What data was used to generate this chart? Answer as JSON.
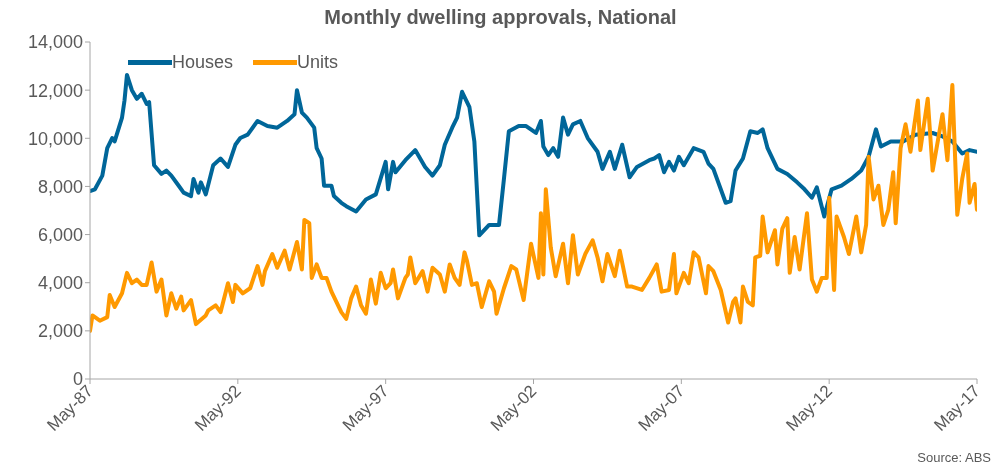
{
  "chart_data": {
    "type": "line",
    "title": "Monthly dwelling approvals, National",
    "annotations": [
      "Source: ABS"
    ],
    "xlim": [
      "1987-05",
      "2017-05"
    ],
    "xticks": [
      {
        "value": "1987-05",
        "label": "May-87"
      },
      {
        "value": "1992-05",
        "label": "May-92"
      },
      {
        "value": "1997-05",
        "label": "May-97"
      },
      {
        "value": "2002-05",
        "label": "May-02"
      },
      {
        "value": "2007-05",
        "label": "May-07"
      },
      {
        "value": "2012-05",
        "label": "May-12"
      },
      {
        "value": "2017-05",
        "label": "May-17"
      }
    ],
    "ylim": [
      0,
      14000
    ],
    "yticks": [
      0,
      {
        "value": 2000,
        "label": "2,000"
      },
      {
        "value": 4000,
        "label": "4,000"
      },
      {
        "value": 6000,
        "label": "6,000"
      },
      {
        "value": 8000,
        "label": "8,000"
      },
      {
        "value": 10000,
        "label": "10,000"
      },
      {
        "value": 12000,
        "label": "12,000"
      },
      {
        "value": 14000,
        "label": "14,000"
      }
    ],
    "legend": "top left",
    "marker": "none",
    "line_style": "solid",
    "series": [
      {
        "name": "Houses",
        "color": "#006699",
        "x": [
          "1987-05",
          "1987-07",
          "1987-10",
          "1987-12",
          "1988-02",
          "1988-03",
          "1988-06",
          "1988-07",
          "1988-08",
          "1988-10",
          "1988-12",
          "1989-02",
          "1989-04",
          "1989-05",
          "1989-07",
          "1989-10",
          "1989-12",
          "1990-02",
          "1990-05",
          "1990-07",
          "1990-10",
          "1990-11",
          "1991-01",
          "1991-02",
          "1991-04",
          "1991-07",
          "1991-10",
          "1992-01",
          "1992-04",
          "1992-06",
          "1992-09",
          "1993-01",
          "1993-05",
          "1993-09",
          "1994-01",
          "1994-04",
          "1994-05",
          "1994-07",
          "1994-09",
          "1994-12",
          "1995-01",
          "1995-03",
          "1995-04",
          "1995-07",
          "1995-08",
          "1995-11",
          "1996-01",
          "1996-05",
          "1996-09",
          "1997-01",
          "1997-05",
          "1997-06",
          "1997-08",
          "1997-09",
          "1998-01",
          "1998-05",
          "1998-09",
          "1998-12",
          "1999-03",
          "1999-05",
          "1999-08",
          "1999-10",
          "1999-12",
          "2000-03",
          "2000-05",
          "2000-07",
          "2000-11",
          "2001-03",
          "2001-05",
          "2001-07",
          "2001-11",
          "2002-02",
          "2002-06",
          "2002-08",
          "2002-09",
          "2002-11",
          "2003-01",
          "2003-03",
          "2003-05",
          "2003-07",
          "2003-09",
          "2003-12",
          "2004-03",
          "2004-07",
          "2004-09",
          "2004-12",
          "2005-02",
          "2005-05",
          "2005-08",
          "2005-11",
          "2006-04",
          "2006-06",
          "2006-08",
          "2006-10",
          "2006-12",
          "2007-02",
          "2007-04",
          "2007-06",
          "2007-10",
          "2008-02",
          "2008-04",
          "2008-06",
          "2008-11",
          "2009-01",
          "2009-03",
          "2009-06",
          "2009-09",
          "2009-12",
          "2010-02",
          "2010-04",
          "2010-08",
          "2010-12",
          "2011-04",
          "2011-07",
          "2011-10",
          "2011-12",
          "2012-03",
          "2012-06",
          "2012-10",
          "2013-02",
          "2013-06",
          "2013-09",
          "2013-12",
          "2014-02",
          "2014-06",
          "2014-11",
          "2015-04",
          "2015-11",
          "2016-03",
          "2016-07",
          "2016-11",
          "2017-02",
          "2017-05"
        ],
        "values": [
          7810,
          7880,
          8450,
          9590,
          10010,
          9870,
          10860,
          11570,
          12630,
          12000,
          11640,
          11850,
          11430,
          11500,
          8880,
          8520,
          8660,
          8450,
          8030,
          7740,
          7600,
          8310,
          7740,
          8170,
          7670,
          8880,
          9160,
          8810,
          9730,
          10010,
          10150,
          10720,
          10510,
          10440,
          10720,
          11000,
          12000,
          11070,
          10860,
          10440,
          9590,
          9160,
          8030,
          8030,
          7600,
          7320,
          7180,
          6960,
          7460,
          7670,
          9020,
          7880,
          9020,
          8590,
          9090,
          9510,
          8810,
          8450,
          8880,
          9730,
          10440,
          10860,
          11930,
          11290,
          9870,
          5970,
          6400,
          6400,
          8310,
          10290,
          10510,
          10510,
          10220,
          10720,
          9660,
          9300,
          9590,
          9230,
          10860,
          10150,
          10580,
          10720,
          10010,
          9440,
          8730,
          9440,
          8730,
          9730,
          8380,
          8810,
          9090,
          9160,
          9300,
          8590,
          9020,
          8660,
          9230,
          8880,
          9590,
          9440,
          8950,
          8730,
          7320,
          7390,
          8660,
          9160,
          10290,
          10220,
          10370,
          9590,
          8730,
          8520,
          8170,
          7880,
          7530,
          7960,
          6750,
          7880,
          8030,
          8310,
          8660,
          9230,
          10370,
          9660,
          9870,
          9870,
          10150,
          10220,
          10080,
          9870,
          9370,
          9510,
          9440
        ]
      },
      {
        "name": "Units",
        "color": "#ff9900",
        "x": [
          "1987-05",
          "1987-06",
          "1987-09",
          "1987-12",
          "1988-01",
          "1988-03",
          "1988-06",
          "1988-08",
          "1988-10",
          "1988-12",
          "1989-02",
          "1989-04",
          "1989-06",
          "1989-08",
          "1989-10",
          "1989-12",
          "1990-02",
          "1990-04",
          "1990-06",
          "1990-07",
          "1990-10",
          "1990-12",
          "1991-04",
          "1991-05",
          "1991-08",
          "1991-10",
          "1992-01",
          "1992-03",
          "1992-04",
          "1992-07",
          "1992-10",
          "1993-01",
          "1993-03",
          "1993-04",
          "1993-07",
          "1993-09",
          "1993-12",
          "1994-02",
          "1994-05",
          "1994-07",
          "1994-08",
          "1994-10",
          "1994-11",
          "1995-01",
          "1995-03",
          "1995-05",
          "1995-07",
          "1995-09",
          "1995-11",
          "1996-01",
          "1996-03",
          "1996-05",
          "1996-07",
          "1996-09",
          "1996-11",
          "1997-01",
          "1997-03",
          "1997-05",
          "1997-07",
          "1997-08",
          "1997-10",
          "1998-01",
          "1998-02",
          "1998-03",
          "1998-05",
          "1998-08",
          "1998-10",
          "1998-12",
          "1999-03",
          "1999-05",
          "1999-07",
          "1999-09",
          "1999-11",
          "2000-01",
          "2000-02",
          "2000-04",
          "2000-06",
          "2000-08",
          "2000-11",
          "2001-01",
          "2001-02",
          "2001-05",
          "2001-08",
          "2001-10",
          "2002-01",
          "2002-04",
          "2002-07",
          "2002-08",
          "2002-09",
          "2002-10",
          "2002-12",
          "2003-02",
          "2003-05",
          "2003-07",
          "2003-09",
          "2003-11",
          "2004-02",
          "2004-05",
          "2004-07",
          "2004-09",
          "2004-11",
          "2005-02",
          "2005-04",
          "2005-07",
          "2005-09",
          "2006-01",
          "2006-04",
          "2006-07",
          "2006-09",
          "2006-12",
          "2007-02",
          "2007-03",
          "2007-06",
          "2007-08",
          "2007-10",
          "2007-12",
          "2008-03",
          "2008-04",
          "2008-06",
          "2008-09",
          "2008-12",
          "2009-02",
          "2009-03",
          "2009-05",
          "2009-06",
          "2009-08",
          "2009-10",
          "2009-11",
          "2010-01",
          "2010-02",
          "2010-04",
          "2010-07",
          "2010-08",
          "2010-10",
          "2010-12",
          "2011-01",
          "2011-03",
          "2011-05",
          "2011-08",
          "2011-10",
          "2011-12",
          "2012-02",
          "2012-04",
          "2012-05",
          "2012-07",
          "2012-08",
          "2012-11",
          "2013-01",
          "2013-04",
          "2013-06",
          "2013-08",
          "2013-09",
          "2013-11",
          "2014-01",
          "2014-03",
          "2014-05",
          "2014-07",
          "2014-08",
          "2014-10",
          "2014-12",
          "2015-02",
          "2015-05",
          "2015-06",
          "2015-09",
          "2015-11",
          "2016-03",
          "2016-05",
          "2016-07",
          "2016-09",
          "2016-11",
          "2017-01",
          "2017-02",
          "2017-04",
          "2017-05"
        ],
        "values": [
          2000,
          2640,
          2420,
          2570,
          3490,
          2990,
          3560,
          4410,
          3980,
          4130,
          3910,
          3910,
          4840,
          3630,
          4130,
          2640,
          3560,
          2920,
          3420,
          2850,
          3280,
          2280,
          2640,
          2850,
          3060,
          2780,
          3980,
          3200,
          3910,
          3560,
          3770,
          4690,
          3910,
          4480,
          5190,
          4620,
          5330,
          4550,
          5690,
          4550,
          6610,
          6470,
          4200,
          4760,
          4200,
          4200,
          3630,
          3200,
          2780,
          2500,
          3350,
          3840,
          3060,
          2710,
          4130,
          3130,
          4410,
          3770,
          3980,
          4550,
          3350,
          4200,
          4340,
          5050,
          3980,
          4480,
          3630,
          4620,
          4340,
          3630,
          4760,
          4200,
          3910,
          5260,
          4910,
          3910,
          3980,
          2990,
          4060,
          3630,
          2710,
          3770,
          4690,
          4550,
          3280,
          5620,
          4200,
          6890,
          4340,
          7880,
          5470,
          4270,
          5620,
          3980,
          5970,
          4340,
          5190,
          5760,
          5050,
          4060,
          5190,
          4270,
          5330,
          3840,
          3840,
          3700,
          4200,
          4760,
          3630,
          3700,
          5190,
          3560,
          4410,
          3980,
          5260,
          5050,
          3560,
          4690,
          4480,
          3700,
          2350,
          3200,
          3350,
          2350,
          3840,
          3200,
          3060,
          5050,
          5120,
          6750,
          5260,
          6180,
          4760,
          6250,
          6680,
          4410,
          5900,
          4550,
          6890,
          4130,
          3630,
          4200,
          4200,
          7530,
          3700,
          6750,
          5900,
          5190,
          6750,
          5260,
          6400,
          9230,
          7460,
          8030,
          6400,
          7030,
          8590,
          6470,
          9590,
          10580,
          9440,
          11570,
          9510,
          11640,
          8660,
          11000,
          9090,
          12210,
          6820,
          8310,
          9370,
          7320,
          8100,
          7030
        ]
      }
    ]
  }
}
